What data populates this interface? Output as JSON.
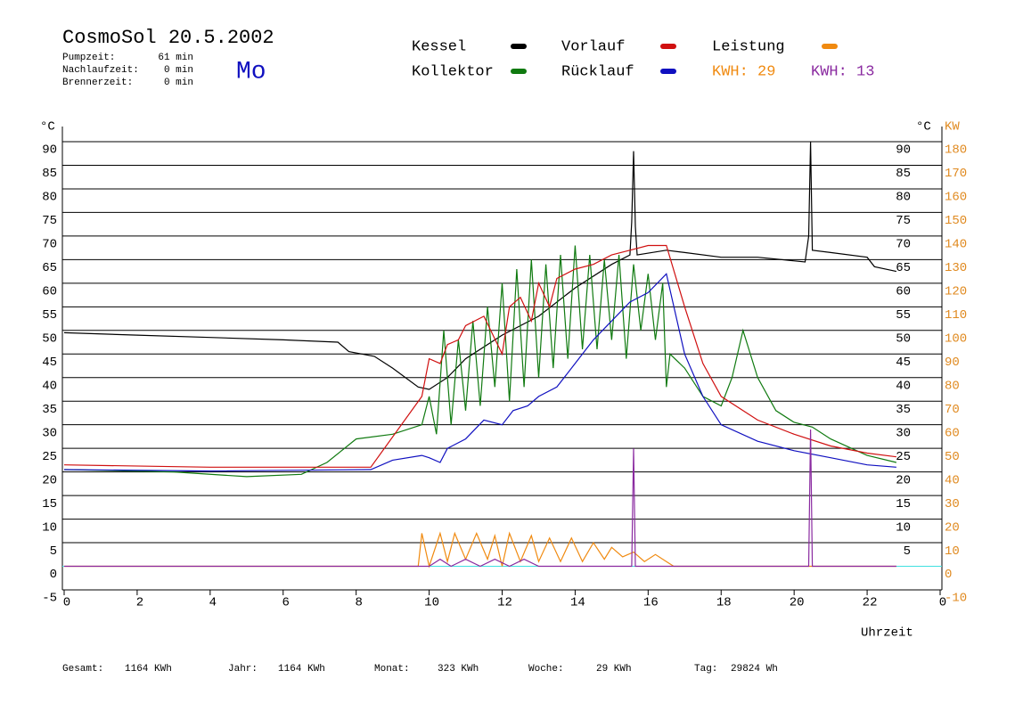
{
  "chart_data": {
    "type": "line",
    "title": "CosmoSol 20.5.2002",
    "day": "Mo",
    "info": [
      {
        "label": "Pumpzeit:",
        "value": "61 min"
      },
      {
        "label": "Nachlaufzeit:",
        "value": "0 min"
      },
      {
        "label": "Brennerzeit:",
        "value": "0 min"
      }
    ],
    "footer": [
      {
        "label": "Gesamt:",
        "value": "1164 KWh"
      },
      {
        "label": "Jahr:",
        "value": "1164 KWh"
      },
      {
        "label": "Monat:",
        "value": "323 KWh"
      },
      {
        "label": "Woche:",
        "value": "29 KWh"
      },
      {
        "label": "Tag:",
        "value": "29824 Wh"
      }
    ],
    "x_label": "Uhrzeit",
    "y_label": "°C",
    "y2_label": "KW",
    "xlim": [
      0,
      24
    ],
    "xticks": [
      0,
      2,
      4,
      6,
      8,
      10,
      12,
      14,
      16,
      18,
      20,
      22,
      {
        "value": 24,
        "label": "0"
      }
    ],
    "ylim": [
      -5,
      90
    ],
    "yticks": [
      90,
      85,
      80,
      75,
      70,
      65,
      60,
      55,
      50,
      45,
      40,
      35,
      30,
      25,
      20,
      15,
      10,
      5,
      0,
      -5
    ],
    "yticks_right": [
      90,
      85,
      80,
      75,
      70,
      65,
      60,
      55,
      50,
      45,
      40,
      35,
      30,
      25,
      20,
      15,
      10,
      5
    ],
    "y2lim": [
      -10,
      180
    ],
    "y2ticks": [
      180,
      170,
      160,
      150,
      140,
      130,
      120,
      110,
      100,
      90,
      80,
      70,
      60,
      50,
      40,
      30,
      20,
      10,
      0,
      -10
    ],
    "grid": true,
    "zero_line_color": "#40e0e0",
    "totals": [
      {
        "label": "KWH: 29",
        "color": "#f08a10"
      },
      {
        "label": "KWH: 13",
        "color": "#8a2aa0"
      }
    ],
    "series": [
      {
        "name": "Kessel",
        "color": "#000000",
        "x": [
          0,
          2,
          4,
          6,
          7.5,
          7.8,
          8.5,
          9,
          9.7,
          10,
          10.5,
          11,
          12,
          13,
          14,
          15,
          15.5,
          15.55,
          15.6,
          15.65,
          15.7,
          16.5,
          17,
          18,
          19,
          20.3,
          20.4,
          20.45,
          20.5,
          21,
          22,
          22.2,
          22.8
        ],
        "values": [
          49.5,
          49,
          48.5,
          48,
          47.5,
          45.5,
          44.5,
          42,
          38,
          37.5,
          40,
          44,
          49,
          53,
          59,
          64,
          66,
          73,
          88,
          72,
          66,
          67,
          66.5,
          65.5,
          65.5,
          64.5,
          70,
          90,
          67,
          66.5,
          65.5,
          63.5,
          62.5
        ]
      },
      {
        "name": "Kollektor",
        "color": "#107a10",
        "x": [
          0,
          3,
          5,
          6.5,
          7.2,
          8,
          9,
          9.8,
          10,
          10.2,
          10.4,
          10.6,
          10.8,
          11,
          11.2,
          11.4,
          11.6,
          11.8,
          12,
          12.2,
          12.4,
          12.6,
          12.8,
          13,
          13.2,
          13.4,
          13.6,
          13.8,
          14,
          14.2,
          14.4,
          14.6,
          14.8,
          15,
          15.2,
          15.4,
          15.6,
          15.8,
          16,
          16.2,
          16.4,
          16.5,
          16.6,
          17,
          17.5,
          18,
          18.3,
          18.6,
          19,
          19.5,
          20,
          20.5,
          21,
          22,
          22.8
        ],
        "values": [
          20.5,
          20,
          19,
          19.5,
          22,
          27,
          28,
          30,
          36,
          28,
          50,
          30,
          48,
          33,
          52,
          34,
          55,
          38,
          60,
          35,
          63,
          38,
          65,
          40,
          64,
          42,
          66,
          44,
          68,
          46,
          66,
          46,
          65,
          48,
          66,
          44,
          64,
          50,
          62,
          48,
          60,
          38,
          45,
          42,
          36,
          34,
          40,
          50,
          40,
          33,
          30.5,
          29.5,
          27,
          23.5,
          22
        ]
      },
      {
        "name": "Vorlauf",
        "color": "#d01010",
        "x": [
          0,
          4,
          8.4,
          9.8,
          10,
          10.3,
          10.5,
          10.8,
          11,
          11.5,
          12,
          12.2,
          12.5,
          12.8,
          13,
          13.3,
          13.5,
          14,
          14.5,
          15,
          15.5,
          16,
          16.5,
          17,
          17.5,
          18,
          19,
          20,
          21,
          22,
          22.8
        ],
        "values": [
          21.5,
          21,
          21,
          36,
          44,
          43,
          47,
          48,
          51,
          53,
          45,
          55,
          57,
          52,
          60,
          55,
          61,
          63,
          64,
          66,
          67,
          68,
          68,
          55,
          43,
          36,
          31,
          28,
          25.5,
          24,
          23.2
        ]
      },
      {
        "name": "Rücklauf",
        "color": "#1010c0",
        "x": [
          0,
          4,
          8.4,
          9,
          9.8,
          10,
          10.3,
          10.5,
          11,
          11.5,
          12,
          12.3,
          12.7,
          13,
          13.5,
          14,
          14.5,
          15,
          15.5,
          16,
          16.5,
          17,
          17.5,
          18,
          19,
          20,
          21,
          22,
          22.8
        ],
        "values": [
          20.5,
          20.2,
          20.5,
          22.5,
          23.5,
          23,
          22,
          25,
          27,
          31,
          30,
          33,
          34,
          36,
          38,
          43,
          48,
          52,
          56,
          58,
          62,
          45,
          36,
          30,
          26.5,
          24.5,
          23,
          21.5,
          21
        ]
      },
      {
        "name": "Leistung",
        "color": "#f08a10",
        "axis": "y2",
        "x": [
          0,
          9.7,
          9.8,
          10,
          10.3,
          10.5,
          10.7,
          11,
          11.3,
          11.6,
          11.8,
          12,
          12.2,
          12.5,
          12.8,
          13,
          13.3,
          13.6,
          13.9,
          14.2,
          14.5,
          14.8,
          15,
          15.3,
          15.6,
          15.9,
          16.2,
          16.5,
          16.7,
          22.8
        ],
        "values": [
          0,
          0,
          14,
          0,
          14,
          2,
          14,
          3,
          14,
          3,
          13,
          0,
          14,
          2,
          13,
          2,
          12,
          2,
          12,
          2,
          10,
          3,
          8,
          4,
          6,
          2,
          5,
          2,
          0,
          0
        ]
      },
      {
        "color": "#8a2aa0",
        "axis": "y2",
        "x": [
          0,
          10,
          10.3,
          10.6,
          11,
          11.4,
          11.8,
          12.2,
          12.6,
          13,
          15.55,
          15.6,
          15.65,
          20.4,
          20.45,
          20.5,
          22.8
        ],
        "values": [
          0,
          0,
          3,
          0,
          3,
          0,
          3,
          0,
          3,
          0,
          0,
          50,
          0,
          0,
          58,
          0,
          0
        ]
      }
    ]
  }
}
